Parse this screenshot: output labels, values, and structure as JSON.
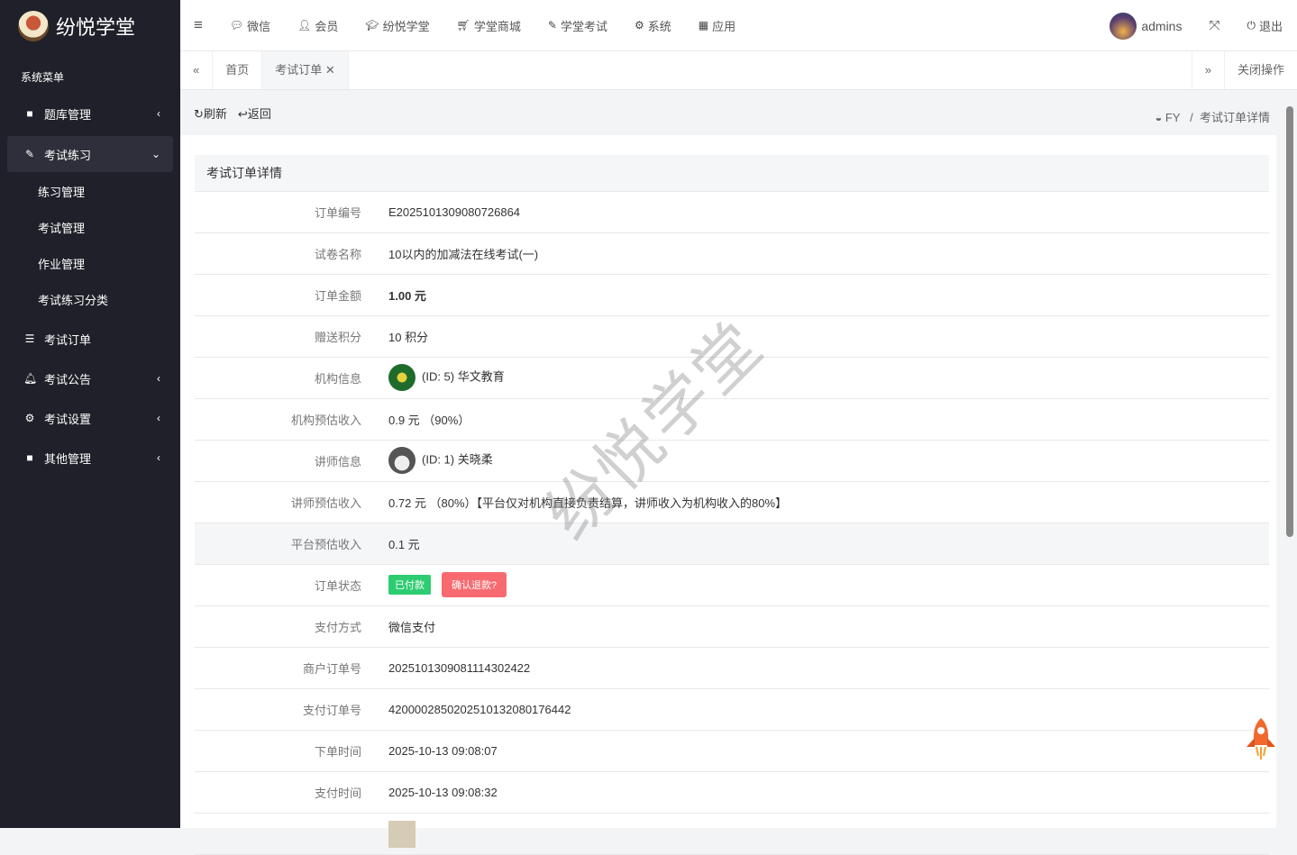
{
  "brand": {
    "name": "纷悦学堂"
  },
  "sidebar": {
    "title": "系统菜单",
    "items": [
      {
        "label": "题库管理",
        "icon": "folder-icon"
      },
      {
        "label": "考试练习",
        "icon": "edit-icon",
        "active": true,
        "children": [
          "练习管理",
          "考试管理",
          "作业管理",
          "考试练习分类"
        ]
      },
      {
        "label": "考试订单",
        "icon": "list-icon"
      },
      {
        "label": "考试公告",
        "icon": "bell-icon"
      },
      {
        "label": "考试设置",
        "icon": "gear-icon"
      },
      {
        "label": "其他管理",
        "icon": "square-icon"
      }
    ]
  },
  "topnav": {
    "items": [
      "微信",
      "会员",
      "纷悦学堂",
      "学堂商城",
      "学堂考试",
      "系统",
      "应用"
    ],
    "user": "admins",
    "logout": "退出"
  },
  "tabs": {
    "items": [
      "首页",
      "考试订单"
    ],
    "close_ops": "关闭操作"
  },
  "toolbar": {
    "refresh": "刷新",
    "back": "返回"
  },
  "breadcrumb": {
    "root": "FY",
    "current": "考试订单详情"
  },
  "detail": {
    "title": "考试订单详情",
    "rows": [
      {
        "label": "订单编号",
        "value": "E2025101309080726864"
      },
      {
        "label": "试卷名称",
        "value": "10以内的加减法在线考试(一)"
      },
      {
        "label": "订单金额",
        "value": "1.00 元"
      },
      {
        "label": "赠送积分",
        "value": "10 积分"
      },
      {
        "label": "机构信息",
        "value": "(ID: 5)  华文教育"
      },
      {
        "label": "机构预估收入",
        "value": "0.9 元 （90%）"
      },
      {
        "label": "讲师信息",
        "value": "(ID: 1)  关晓柔"
      },
      {
        "label": "讲师预估收入",
        "value": "0.72 元 （80%）【平台仅对机构直接负责结算，讲师收入为机构收入的80%】"
      },
      {
        "label": "平台预估收入",
        "value": "0.1 元"
      },
      {
        "label": "订单状态",
        "badge": "已付款",
        "button": "确认退款?"
      },
      {
        "label": "支付方式",
        "value": "微信支付"
      },
      {
        "label": "商户订单号",
        "value": "2025101309081114302422"
      },
      {
        "label": "支付订单号",
        "value": "4200002850202510132080176442"
      },
      {
        "label": "下单时间",
        "value": "2025-10-13 09:08:07"
      },
      {
        "label": "支付时间",
        "value": "2025-10-13 09:08:32"
      }
    ]
  },
  "colors": {
    "sidebar": "#1f2029",
    "paid": "#2ecc71",
    "refund": "#f76a6f"
  }
}
